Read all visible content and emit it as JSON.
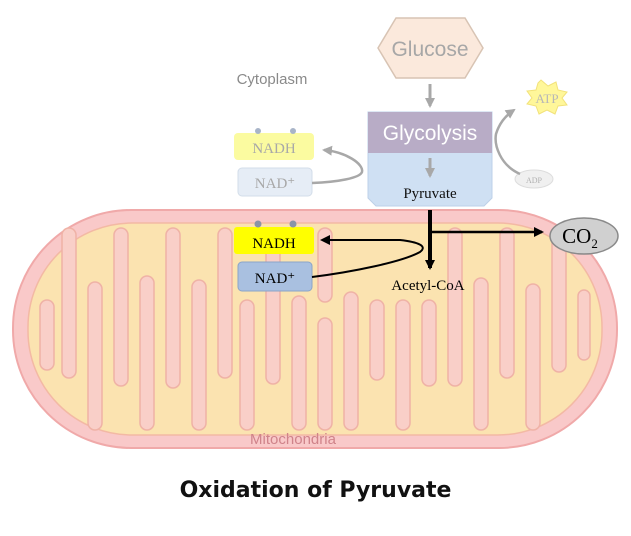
{
  "labels": {
    "glucose": "Glucose",
    "cytoplasm": "Cytoplasm",
    "glycolysis": "Glycolysis",
    "pyruvate": "Pyruvate",
    "atp": "ATP",
    "adp": "ADP",
    "nadh_top": "NADH",
    "nad_top": "NAD⁺",
    "nadh_mito": "NADH",
    "nad_mito": "NAD⁺",
    "acetyl_coa": "Acetyl-CoA",
    "co2": "CO",
    "co2_sub": "2",
    "mitochondria": "Mitochondria"
  },
  "caption": "Oxidation of Pyruvate",
  "colors": {
    "mito_outer": "#f9c9c9",
    "mito_inner": "#fbe3b0",
    "mito_edge": "#f0a9a9",
    "glucose_fill": "#fbe9dc",
    "glycolysis_fill": "#b8acc6",
    "pyruvate_fill": "#cfe0f3",
    "nadh_fill": "#ffff00",
    "nad_fill": "#a9c0e0",
    "atp_fill": "#fff79a",
    "co2_fill": "#d0d0d0"
  }
}
